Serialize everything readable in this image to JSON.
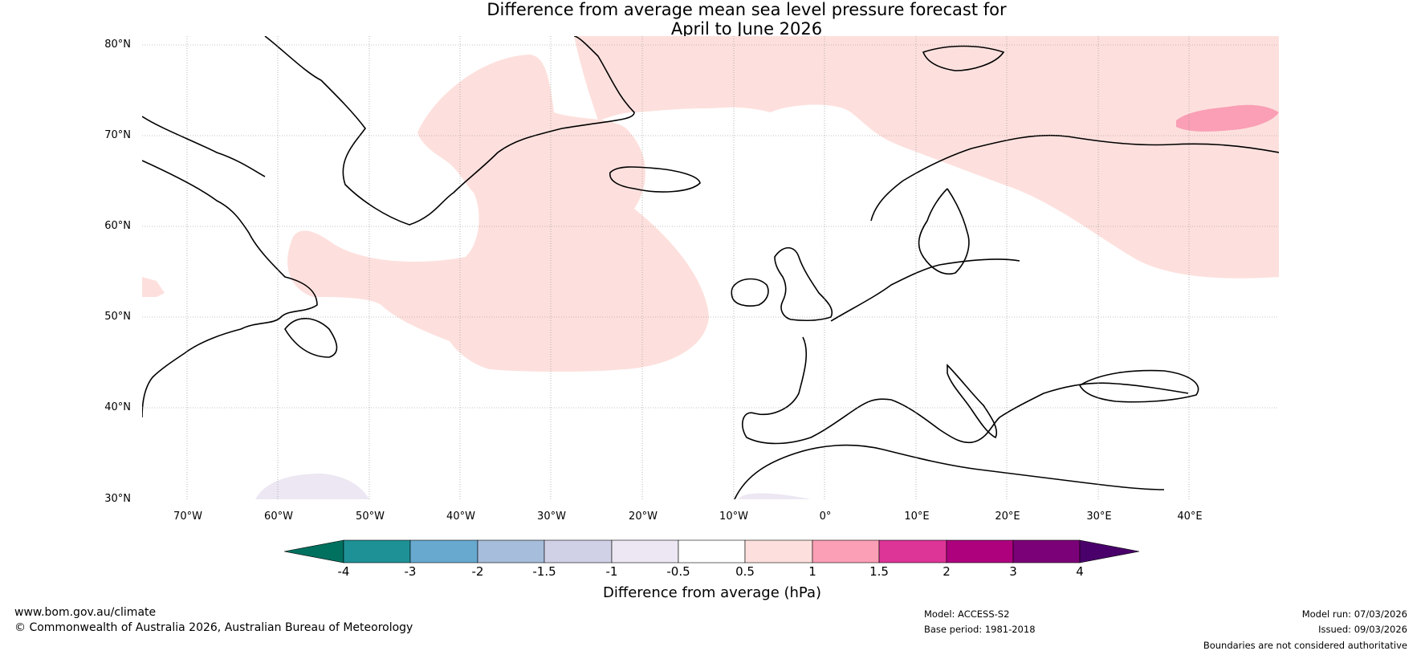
{
  "title": {
    "line1": "Difference from average mean sea level pressure forecast for",
    "line2": "April to June 2026"
  },
  "latitude_labels": [
    "80°N",
    "70°N",
    "60°N",
    "50°N",
    "40°N",
    "30°N"
  ],
  "longitude_labels": [
    "70°W",
    "60°W",
    "50°W",
    "40°W",
    "30°W",
    "20°W",
    "10°W",
    "0°",
    "10°E",
    "20°E",
    "30°E",
    "40°E"
  ],
  "colorbar": {
    "title": "Difference from average (hPa)",
    "ticks": [
      "-4",
      "-3",
      "-2",
      "-1.5",
      "-1",
      "-0.5",
      "0.5",
      "1",
      "1.5",
      "2",
      "3",
      "4"
    ],
    "colors": {
      "below_-4": "#00705f",
      "-4_-3": "#1e9196",
      "-3_-2": "#67a9cf",
      "-2_-1.5": "#a6bddb",
      "-1.5_-1": "#d0d1e6",
      "-1_-0.5": "#ece7f2",
      "-0.5_0.5": "#ffffff",
      "0.5_1": "#fde0dd",
      "1_1.5": "#fa9fb5",
      "1.5_2": "#dd3497",
      "2_3": "#ae017e",
      "3_4": "#7a0177",
      "above_4": "#49006a"
    }
  },
  "footer": {
    "website": "www.bom.gov.au/climate",
    "copyright": "© Commonwealth of Australia 2026, Australian Bureau of Meteorology",
    "model": "Model: ACCESS-S2",
    "base_period": "Base period: 1981-2018",
    "model_run": "Model run: 07/03/2026",
    "issued": "Issued: 09/03/2026",
    "disclaimer": "Boundaries are not considered authoritative"
  }
}
